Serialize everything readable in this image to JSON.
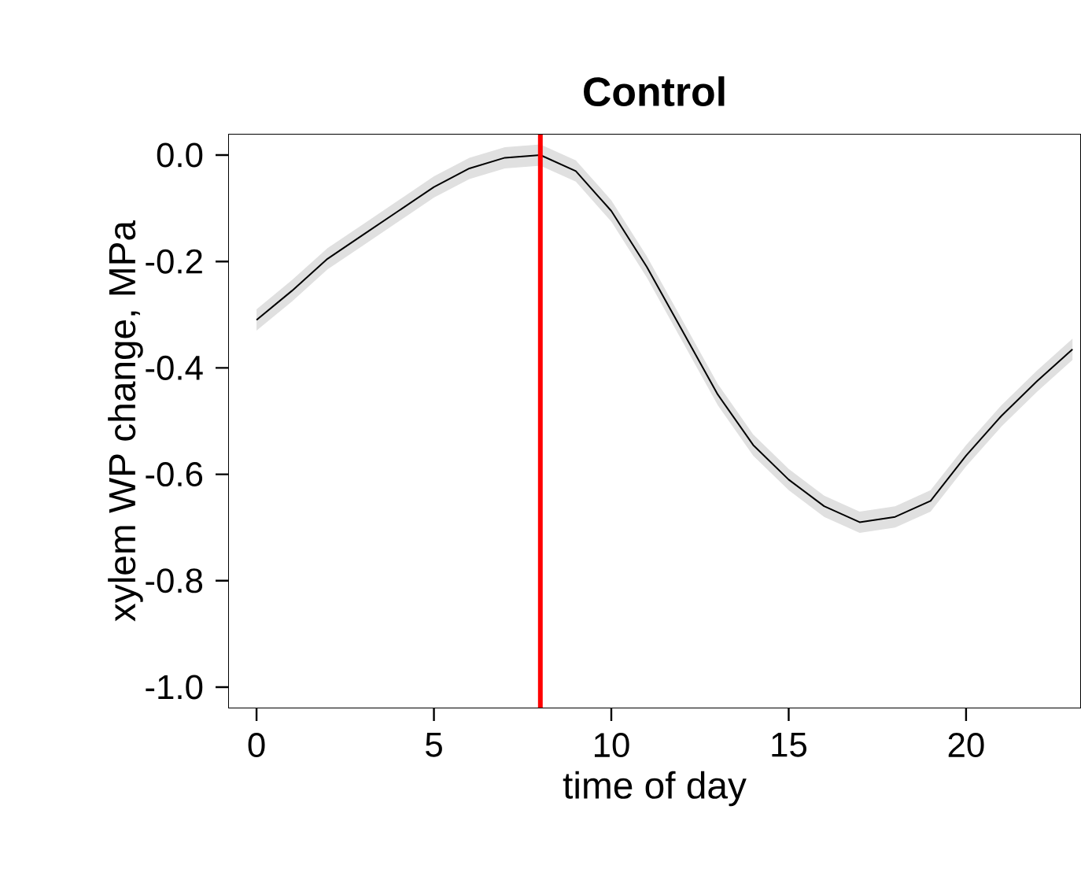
{
  "chart_data": {
    "type": "line",
    "title": "Control",
    "xlabel": "time of day",
    "ylabel": "xylem WP change, MPa",
    "x": [
      0,
      1,
      2,
      3,
      4,
      5,
      6,
      7,
      8,
      9,
      10,
      11,
      12,
      13,
      14,
      15,
      16,
      17,
      18,
      19,
      20,
      21,
      22,
      23
    ],
    "series": [
      {
        "color": "#000000",
        "values": [
          -0.31,
          -0.255,
          -0.195,
          -0.15,
          -0.105,
          -0.06,
          -0.025,
          -0.005,
          0.0,
          -0.03,
          -0.105,
          -0.21,
          -0.33,
          -0.45,
          -0.545,
          -0.61,
          -0.66,
          -0.69,
          -0.68,
          -0.65,
          -0.565,
          -0.49,
          -0.425,
          -0.365
        ],
        "lower": [
          -0.33,
          -0.275,
          -0.215,
          -0.17,
          -0.125,
          -0.08,
          -0.045,
          -0.025,
          -0.02,
          -0.05,
          -0.125,
          -0.23,
          -0.35,
          -0.47,
          -0.565,
          -0.63,
          -0.68,
          -0.71,
          -0.7,
          -0.67,
          -0.585,
          -0.51,
          -0.445,
          -0.385
        ],
        "upper": [
          -0.29,
          -0.235,
          -0.175,
          -0.13,
          -0.085,
          -0.04,
          -0.005,
          0.015,
          0.02,
          -0.01,
          -0.085,
          -0.19,
          -0.31,
          -0.43,
          -0.525,
          -0.59,
          -0.64,
          -0.67,
          -0.66,
          -0.63,
          -0.545,
          -0.47,
          -0.405,
          -0.345
        ]
      }
    ],
    "xlim": [
      -0.8,
      23.24
    ],
    "ylim": [
      -1.04,
      0.04
    ],
    "xticks": [
      0,
      5,
      10,
      15,
      20
    ],
    "yticks": [
      {
        "value": 0,
        "label": "0.0"
      },
      {
        "value": -0.2,
        "label": "-0.2"
      },
      {
        "value": -0.4,
        "label": "-0.4"
      },
      {
        "value": -0.6,
        "label": "-0.6"
      },
      {
        "value": -0.8,
        "label": "-0.8"
      },
      {
        "value": -1.0,
        "label": "-1.0"
      }
    ],
    "ref_lines": [
      {
        "axis": "x",
        "value": 8,
        "color": "#ff0000"
      }
    ],
    "grid": false
  }
}
